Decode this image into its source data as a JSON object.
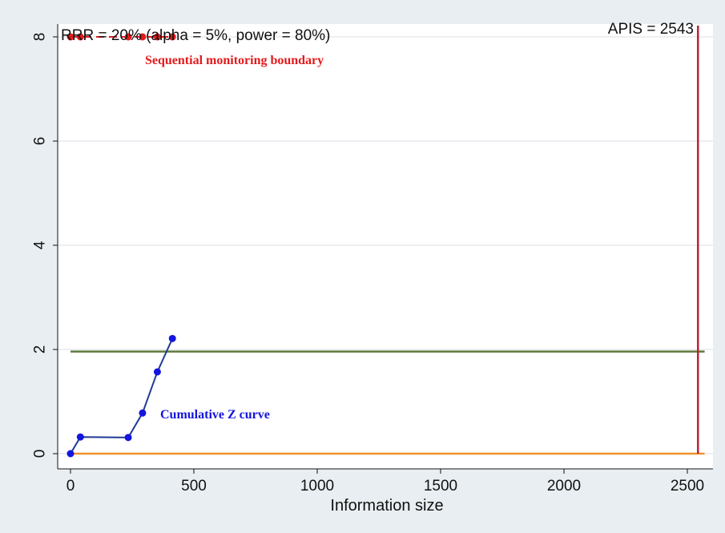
{
  "chart_data": {
    "type": "line",
    "title": "",
    "xlabel": "Information size",
    "ylabel": "",
    "xlim": [
      0,
      2570
    ],
    "ylim": [
      0,
      8
    ],
    "x_ticks": [
      "0",
      "500",
      "1000",
      "1500",
      "2000",
      "2500"
    ],
    "y_ticks": [
      "0",
      "2",
      "4",
      "6",
      "8"
    ],
    "grid": true,
    "series": [
      {
        "name": "Cumulative Z curve",
        "color": "#1f3a93",
        "marker_color": "#1515e0",
        "x": [
          0,
          40,
          234,
          292,
          352,
          413
        ],
        "y": [
          0,
          0.32,
          0.31,
          0.78,
          1.57,
          2.21
        ]
      },
      {
        "name": "Sequential monitoring boundary",
        "color": "#e31a1c",
        "x": [
          0,
          40,
          234,
          292,
          352,
          413
        ],
        "y": [
          8,
          8,
          8,
          8,
          8,
          8
        ]
      }
    ],
    "reference_lines": [
      {
        "y": 1.96,
        "color": "#5d7a3a"
      },
      {
        "y": 0,
        "color": "#f0922b"
      },
      {
        "x": 2543,
        "color": "#c0203a"
      }
    ],
    "annotations": {
      "header": "RRR = 20% (alpha = 5%, power = 80%)",
      "apis": "APIS = 2543",
      "boundary_label": "Sequential monitoring boundary",
      "z_curve_label": "Cumulative Z curve"
    }
  }
}
